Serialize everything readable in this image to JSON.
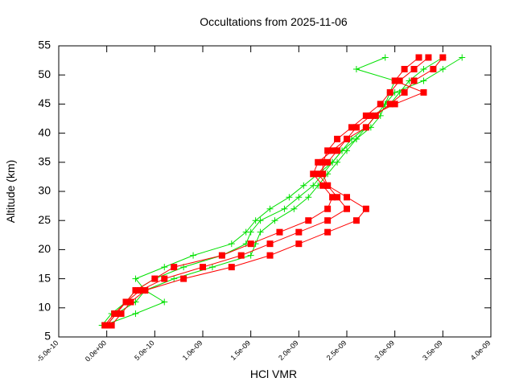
{
  "chart_data": {
    "type": "line",
    "title": "Occultations from 2025-11-06",
    "xlabel": "HCl VMR",
    "ylabel": "Altitude (km)",
    "xlim": [
      -5e-10,
      4e-09
    ],
    "xticks": [
      {
        "value": -5e-10,
        "label": "-5.0e-10"
      },
      {
        "value": 0,
        "label": "0.0e+00"
      },
      {
        "value": 5e-10,
        "label": "5.0e-10"
      },
      {
        "value": 1e-09,
        "label": "1.0e-09"
      },
      {
        "value": 1.5e-09,
        "label": "1.5e-09"
      },
      {
        "value": 2e-09,
        "label": "2.0e-09"
      },
      {
        "value": 2.5e-09,
        "label": "2.5e-09"
      },
      {
        "value": 3e-09,
        "label": "3.0e-09"
      },
      {
        "value": 3.5e-09,
        "label": "3.5e-09"
      },
      {
        "value": 4e-09,
        "label": "4.0e-09"
      }
    ],
    "ylim": [
      5,
      55
    ],
    "yticks": [
      5,
      10,
      15,
      20,
      25,
      30,
      35,
      40,
      45,
      50,
      55
    ],
    "series": [
      {
        "color": "#00e000",
        "marker": "plus",
        "x": [
          -5e-11,
          5e-11,
          2e-10,
          3e-10,
          5e-10,
          8e-10,
          1.2e-09,
          1.45e-09,
          1.5e-09,
          1.6e-09,
          1.85e-09,
          2e-09,
          2.15e-09,
          2.25e-09,
          2.35e-09,
          2.45e-09,
          2.55e-09,
          2.7e-09,
          2.8e-09,
          2.95e-09,
          3.05e-09,
          3.15e-09,
          3.3e-09,
          3.5e-09
        ],
        "values": [
          7,
          9,
          11,
          13,
          15,
          17,
          19,
          21,
          23,
          25,
          27,
          29,
          31,
          33,
          35,
          37,
          39,
          41,
          43,
          45,
          47,
          49,
          51,
          53
        ]
      },
      {
        "color": "#00e000",
        "marker": "plus",
        "x": [
          0,
          1e-10,
          3e-10,
          4e-10,
          7e-10,
          1.1e-09,
          1.5e-09,
          1.55e-09,
          1.6e-09,
          1.75e-09,
          1.95e-09,
          2.1e-09,
          2.2e-09,
          2.3e-09,
          2.4e-09,
          2.5e-09,
          2.6e-09,
          2.75e-09,
          2.85e-09,
          2.9e-09,
          3e-09,
          3.3e-09,
          3.5e-09,
          3.7e-09
        ],
        "values": [
          7,
          9,
          11,
          13,
          15,
          17,
          19,
          21,
          23,
          25,
          27,
          29,
          31,
          33,
          35,
          37,
          39,
          41,
          43,
          45,
          47,
          49,
          51,
          53
        ]
      },
      {
        "color": "#00e000",
        "marker": "plus",
        "x": [
          -3e-11,
          3e-10,
          6e-10,
          4e-10,
          3e-10,
          6e-10,
          9e-10,
          1.3e-09,
          1.45e-09,
          1.55e-09,
          1.7e-09,
          1.9e-09,
          2.05e-09,
          2.2e-09,
          2.35e-09,
          2.45e-09,
          2.6e-09,
          2.7e-09,
          2.8e-09,
          2.9e-09,
          2.95e-09,
          3e-09,
          2.6e-09,
          2.9e-09
        ],
        "values": [
          7,
          9,
          11,
          13,
          15,
          17,
          19,
          21,
          23,
          25,
          27,
          29,
          31,
          33,
          35,
          37,
          39,
          41,
          43,
          45,
          47,
          49,
          51,
          53
        ]
      },
      {
        "color": "#ff0000",
        "marker": "square",
        "x": [
          0,
          1e-10,
          2e-10,
          3.5e-10,
          6e-10,
          1e-09,
          1.4e-09,
          1.7e-09,
          2e-09,
          2.3e-09,
          2.5e-09,
          2.4e-09,
          2.3e-09,
          2.25e-09,
          2.25e-09,
          2.3e-09,
          2.4e-09,
          2.55e-09,
          2.7e-09,
          2.85e-09,
          2.95e-09,
          3.05e-09,
          3.2e-09,
          3.35e-09
        ],
        "values": [
          7,
          9,
          11,
          13,
          15,
          17,
          19,
          21,
          23,
          25,
          27,
          29,
          31,
          33,
          35,
          37,
          39,
          41,
          43,
          45,
          47,
          49,
          51,
          53
        ]
      },
      {
        "color": "#ff0000",
        "marker": "square",
        "x": [
          5e-11,
          1.5e-10,
          2.5e-10,
          4e-10,
          8e-10,
          1.3e-09,
          1.7e-09,
          2e-09,
          2.3e-09,
          2.6e-09,
          2.7e-09,
          2.5e-09,
          2.3e-09,
          2.2e-09,
          2.3e-09,
          2.4e-09,
          2.5e-09,
          2.7e-09,
          2.8e-09,
          2.95e-09,
          3.1e-09,
          3.2e-09,
          3.4e-09,
          3.5e-09
        ],
        "values": [
          7,
          9,
          11,
          13,
          15,
          17,
          19,
          21,
          23,
          25,
          27,
          29,
          31,
          33,
          35,
          37,
          39,
          41,
          43,
          45,
          47,
          49,
          51,
          53
        ]
      },
      {
        "color": "#ff0000",
        "marker": "square",
        "x": [
          -2e-11,
          8e-11,
          2e-10,
          3e-10,
          5e-10,
          7e-10,
          1.2e-09,
          1.5e-09,
          1.8e-09,
          2.1e-09,
          2.3e-09,
          2.35e-09,
          2.25e-09,
          2.15e-09,
          2.2e-09,
          2.35e-09,
          2.5e-09,
          2.6e-09,
          2.75e-09,
          3e-09,
          3.3e-09,
          3e-09,
          3.1e-09,
          3.25e-09
        ],
        "values": [
          7,
          9,
          11,
          13,
          15,
          17,
          19,
          21,
          23,
          25,
          27,
          29,
          31,
          33,
          35,
          37,
          39,
          41,
          43,
          45,
          47,
          49,
          51,
          53
        ]
      }
    ]
  }
}
